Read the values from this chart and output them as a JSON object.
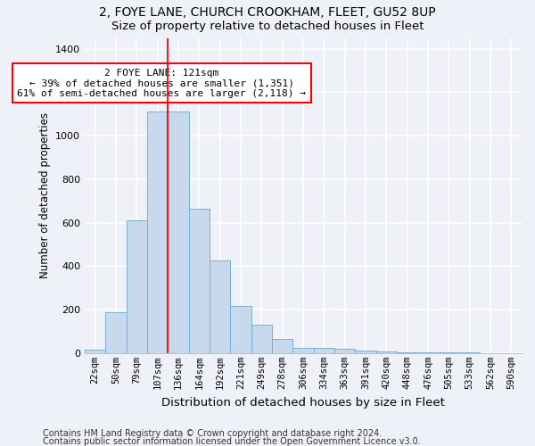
{
  "title1": "2, FOYE LANE, CHURCH CROOKHAM, FLEET, GU52 8UP",
  "title2": "Size of property relative to detached houses in Fleet",
  "xlabel": "Distribution of detached houses by size in Fleet",
  "ylabel": "Number of detached properties",
  "bin_labels": [
    "22sqm",
    "50sqm",
    "79sqm",
    "107sqm",
    "136sqm",
    "164sqm",
    "192sqm",
    "221sqm",
    "249sqm",
    "278sqm",
    "306sqm",
    "334sqm",
    "363sqm",
    "391sqm",
    "420sqm",
    "448sqm",
    "476sqm",
    "505sqm",
    "533sqm",
    "562sqm",
    "590sqm"
  ],
  "bar_values": [
    15,
    190,
    610,
    1110,
    1110,
    665,
    425,
    215,
    130,
    65,
    25,
    25,
    20,
    10,
    8,
    5,
    3,
    2,
    2,
    1,
    1
  ],
  "bar_color": "#c8d9ee",
  "bar_edge_color": "#7aafd4",
  "ylim": [
    0,
    1450
  ],
  "annotation_text": "2 FOYE LANE: 121sqm\n← 39% of detached houses are smaller (1,351)\n61% of semi-detached houses are larger (2,118) →",
  "annotation_box_color": "white",
  "annotation_box_edge_color": "red",
  "footer1": "Contains HM Land Registry data © Crown copyright and database right 2024.",
  "footer2": "Contains public sector information licensed under the Open Government Licence v3.0.",
  "background_color": "#eef2f8",
  "grid_color": "white",
  "title1_fontsize": 10,
  "title2_fontsize": 9.5,
  "xlabel_fontsize": 9.5,
  "ylabel_fontsize": 8.5,
  "tick_fontsize": 7.5,
  "footer_fontsize": 7
}
